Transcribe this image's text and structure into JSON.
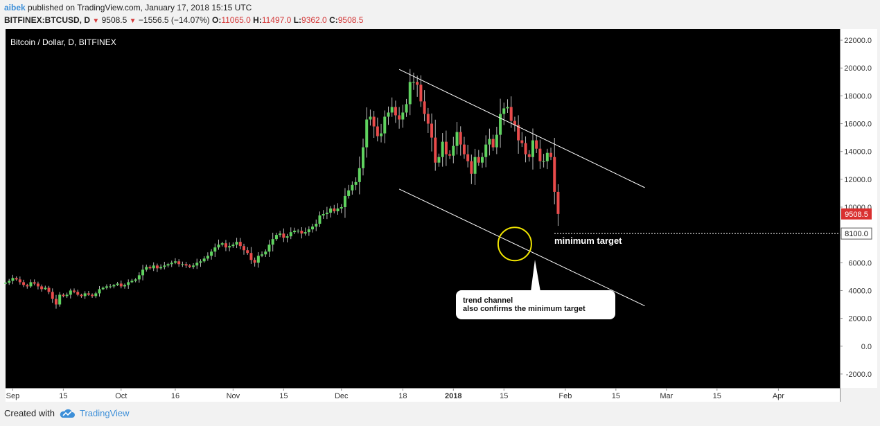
{
  "header": {
    "user": "aibek",
    "published_text": "published on TradingView.com, January 17, 2018 15:15 UTC",
    "symbol": "BITFINEX:BTCUSD, D",
    "last": "9508.5",
    "change": "−1556.5 (−14.07%)",
    "o_label": "O:",
    "o_value": "11065.0",
    "h_label": "H:",
    "h_value": "11497.0",
    "l_label": "L:",
    "l_value": "9362.0",
    "c_label": "C:",
    "c_value": "9508.5"
  },
  "footer": {
    "created_with": "Created with",
    "brand": "TradingView"
  },
  "colors": {
    "background": "#000000",
    "up": "#5fd35f",
    "down": "#e84b4b",
    "trendline": "#ffffff",
    "circle": "#f2e600",
    "price_tag": "#d93030",
    "user_link": "#3d8fd8"
  },
  "chart_data": {
    "type": "candlestick",
    "title": "Bitcoin / Dollar, D, BITFINEX",
    "ylim": [
      -3000,
      22800
    ],
    "y_ticks": [
      "22000.0",
      "20000.0",
      "18000.0",
      "16000.0",
      "14000.0",
      "12000.0",
      "10000.0",
      "8000.0",
      "6000.0",
      "4000.0",
      "2000.0",
      "0.0",
      "-2000.0"
    ],
    "y_tick_values": [
      22000,
      20000,
      18000,
      16000,
      14000,
      12000,
      10000,
      8000,
      6000,
      4000,
      2000,
      0,
      -2000
    ],
    "x_start": "2017-08-30",
    "x_end": "2018-04-18",
    "x_ticks": [
      {
        "label": "Sep",
        "date": "2017-09-01",
        "bold": false
      },
      {
        "label": "15",
        "date": "2017-09-15",
        "bold": false
      },
      {
        "label": "Oct",
        "date": "2017-10-01",
        "bold": false
      },
      {
        "label": "16",
        "date": "2017-10-16",
        "bold": false
      },
      {
        "label": "Nov",
        "date": "2017-11-01",
        "bold": false
      },
      {
        "label": "15",
        "date": "2017-11-15",
        "bold": false
      },
      {
        "label": "Dec",
        "date": "2017-12-01",
        "bold": false
      },
      {
        "label": "18",
        "date": "2017-12-18",
        "bold": false
      },
      {
        "label": "2018",
        "date": "2018-01-01",
        "bold": true
      },
      {
        "label": "15",
        "date": "2018-01-15",
        "bold": false
      },
      {
        "label": "Feb",
        "date": "2018-02-01",
        "bold": false
      },
      {
        "label": "15",
        "date": "2018-02-15",
        "bold": false
      },
      {
        "label": "Mar",
        "date": "2018-03-01",
        "bold": false
      },
      {
        "label": "15",
        "date": "2018-03-15",
        "bold": false
      },
      {
        "label": "Apr",
        "date": "2018-04-01",
        "bold": false
      }
    ],
    "start_date": "2017-08-30",
    "closes": [
      4560,
      4700,
      4900,
      4800,
      4600,
      4400,
      4300,
      4600,
      4500,
      4300,
      4100,
      4200,
      3900,
      3400,
      3000,
      3700,
      3600,
      3700,
      4000,
      3900,
      3700,
      3600,
      3800,
      3700,
      3600,
      3800,
      4100,
      4200,
      4300,
      4300,
      4400,
      4500,
      4300,
      4400,
      4600,
      4700,
      4800,
      5100,
      5500,
      5700,
      5600,
      5800,
      5600,
      5700,
      5800,
      5900,
      6000,
      6100,
      5900,
      5900,
      5800,
      5700,
      5800,
      6000,
      6100,
      6300,
      6500,
      6800,
      7100,
      7300,
      7400,
      7100,
      7200,
      7300,
      7500,
      7200,
      6900,
      6700,
      6200,
      6000,
      6500,
      6600,
      6800,
      7300,
      7700,
      8000,
      8100,
      7800,
      7900,
      8200,
      8300,
      8300,
      8100,
      8200,
      8400,
      8600,
      8800,
      9400,
      9500,
      9600,
      9900,
      9700,
      9900,
      10000,
      10800,
      11200,
      11600,
      11800,
      12800,
      14300,
      16300,
      16500,
      15800,
      15100,
      15300,
      16500,
      16800,
      17200,
      16600,
      16300,
      16800,
      17400,
      19000,
      19000,
      18800,
      17600,
      16700,
      16000,
      15000,
      13200,
      13600,
      14700,
      13800,
      13700,
      14400,
      15400,
      14500,
      13800,
      13300,
      12400,
      13600,
      13200,
      13600,
      14500,
      14900,
      14300,
      15200,
      16700,
      17100,
      17200,
      16200,
      15900,
      14800,
      14600,
      13800,
      13600,
      14800,
      14200,
      13300,
      13300,
      13900,
      13600,
      11100,
      9508.5
    ],
    "last_price_label": "9508.5",
    "target_label": "8100.0",
    "target_price": 8100,
    "channel": {
      "upper": [
        {
          "date": "2017-12-17",
          "price": 19900
        },
        {
          "date": "2018-02-23",
          "price": 11400
        }
      ],
      "lower": [
        {
          "date": "2017-12-17",
          "price": 11300
        },
        {
          "date": "2018-02-23",
          "price": 2900
        }
      ]
    },
    "target_circle": {
      "date": "2018-01-18",
      "price": 7350
    },
    "annotations": {
      "minimum_target": "minimum target",
      "callout_line1": "trend channel",
      "callout_line2": "also confirms the minimum target"
    }
  }
}
